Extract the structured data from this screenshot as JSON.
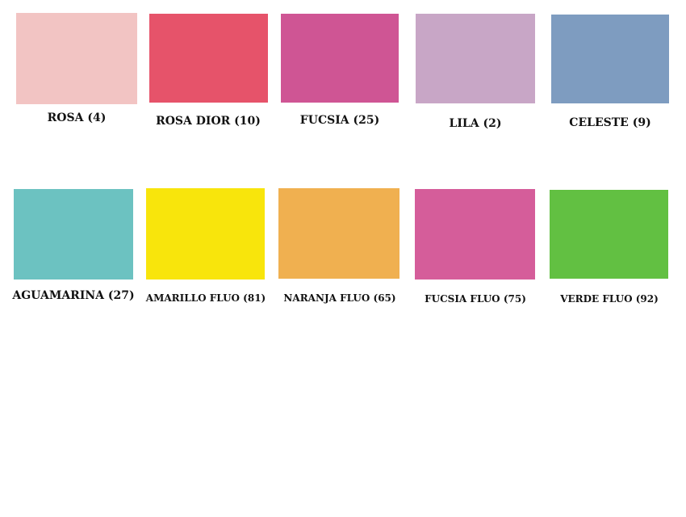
{
  "swatches": [
    {
      "label": "ROSA (4)",
      "color": "#f2c4c3"
    },
    {
      "label": "ROSA DIOR (10)",
      "color": "#e6536a"
    },
    {
      "label": "FUCSIA (25)",
      "color": "#cf5594"
    },
    {
      "label": "LILA (2)",
      "color": "#c8a6c6"
    },
    {
      "label": "CELESTE (9)",
      "color": "#7e9cc0"
    },
    {
      "label": "AGUAMARINA (27)",
      "color": "#6cc2c1"
    },
    {
      "label": "AMARILLO FLUO (81)",
      "color": "#f8e50c"
    },
    {
      "label": "NARANJA FLUO (65)",
      "color": "#f0b050"
    },
    {
      "label": "FUCSIA FLUO (75)",
      "color": "#d55d9a"
    },
    {
      "label": "VERDE FLUO (92)",
      "color": "#62c042"
    }
  ]
}
